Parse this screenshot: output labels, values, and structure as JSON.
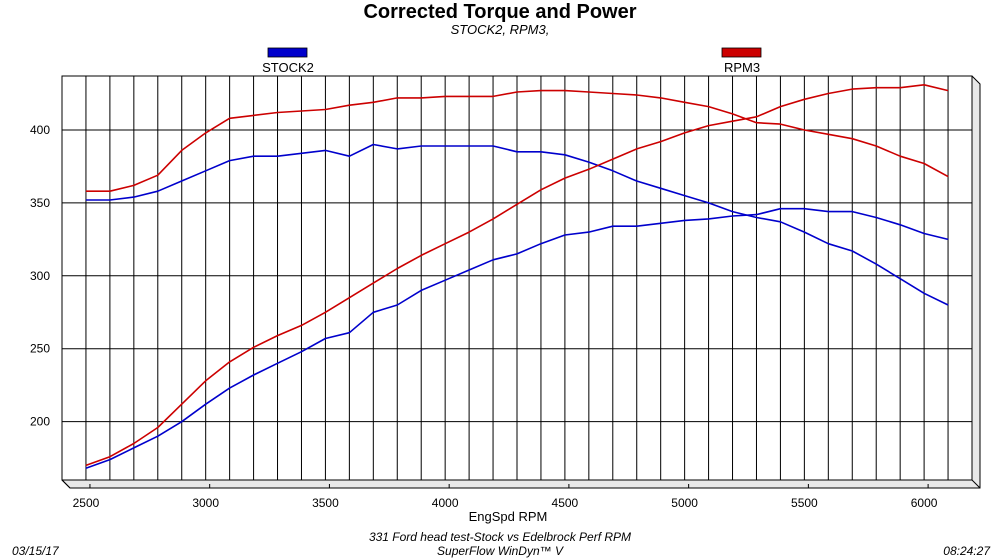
{
  "chart_data": {
    "type": "line",
    "title": "Corrected Torque and Power",
    "subtitle": "STOCK2, RPM3,",
    "xlabel": "EngSpd  RPM",
    "ylabel": "",
    "xlim": [
      2400,
      6200
    ],
    "ylim": [
      160,
      437
    ],
    "x_ticks": [
      2500,
      3000,
      3500,
      4000,
      4500,
      5000,
      5500,
      6000
    ],
    "y_ticks": [
      200,
      250,
      300,
      350,
      400
    ],
    "grid": true,
    "legend": [
      {
        "name": "STOCK2",
        "color": "#0000cc",
        "placement": "top-left"
      },
      {
        "name": "RPM3",
        "color": "#cc0000",
        "placement": "top-right"
      }
    ],
    "x": [
      2500,
      2600,
      2700,
      2800,
      2900,
      3000,
      3100,
      3200,
      3300,
      3400,
      3500,
      3600,
      3700,
      3800,
      3900,
      4000,
      4100,
      4200,
      4300,
      4400,
      4500,
      4600,
      4700,
      4800,
      4900,
      5000,
      5100,
      5200,
      5300,
      5400,
      5500,
      5600,
      5700,
      5800,
      5900,
      6000,
      6100
    ],
    "series": [
      {
        "name": "STOCK2",
        "quantity": "torque",
        "color": "#0000cc",
        "values": [
          352,
          352,
          354,
          358,
          365,
          372,
          379,
          382,
          382,
          384,
          386,
          382,
          390,
          387,
          389,
          389,
          389,
          389,
          385,
          385,
          383,
          378,
          372,
          365,
          360,
          355,
          350,
          344,
          340,
          337,
          330,
          322,
          317,
          308,
          298,
          288,
          280
        ]
      },
      {
        "name": "STOCK2",
        "quantity": "power",
        "color": "#0000cc",
        "values": [
          168,
          174,
          182,
          190,
          200,
          212,
          223,
          232,
          240,
          248,
          257,
          261,
          275,
          280,
          290,
          297,
          304,
          311,
          315,
          322,
          328,
          330,
          334,
          334,
          336,
          338,
          339,
          341,
          342,
          346,
          346,
          344,
          344,
          340,
          335,
          329,
          325
        ]
      },
      {
        "name": "RPM3",
        "quantity": "torque",
        "color": "#cc0000",
        "values": [
          358,
          358,
          362,
          369,
          386,
          398,
          408,
          410,
          412,
          413,
          414,
          417,
          419,
          422,
          422,
          423,
          423,
          423,
          426,
          427,
          427,
          426,
          425,
          424,
          422,
          419,
          416,
          411,
          405,
          404,
          400,
          397,
          394,
          389,
          382,
          377,
          368
        ]
      },
      {
        "name": "RPM3",
        "quantity": "power",
        "color": "#cc0000",
        "values": [
          170,
          176,
          185,
          196,
          212,
          228,
          241,
          251,
          259,
          266,
          275,
          285,
          295,
          305,
          314,
          322,
          330,
          339,
          349,
          359,
          367,
          373,
          380,
          387,
          392,
          398,
          403,
          406,
          409,
          416,
          421,
          425,
          428,
          429,
          429,
          431,
          427
        ]
      }
    ]
  },
  "footer": {
    "date": "03/15/17",
    "description": "331 Ford head test-Stock vs Edelbrock Perf RPM",
    "software": "SuperFlow WinDyn™ V",
    "time": "08:24:27"
  }
}
